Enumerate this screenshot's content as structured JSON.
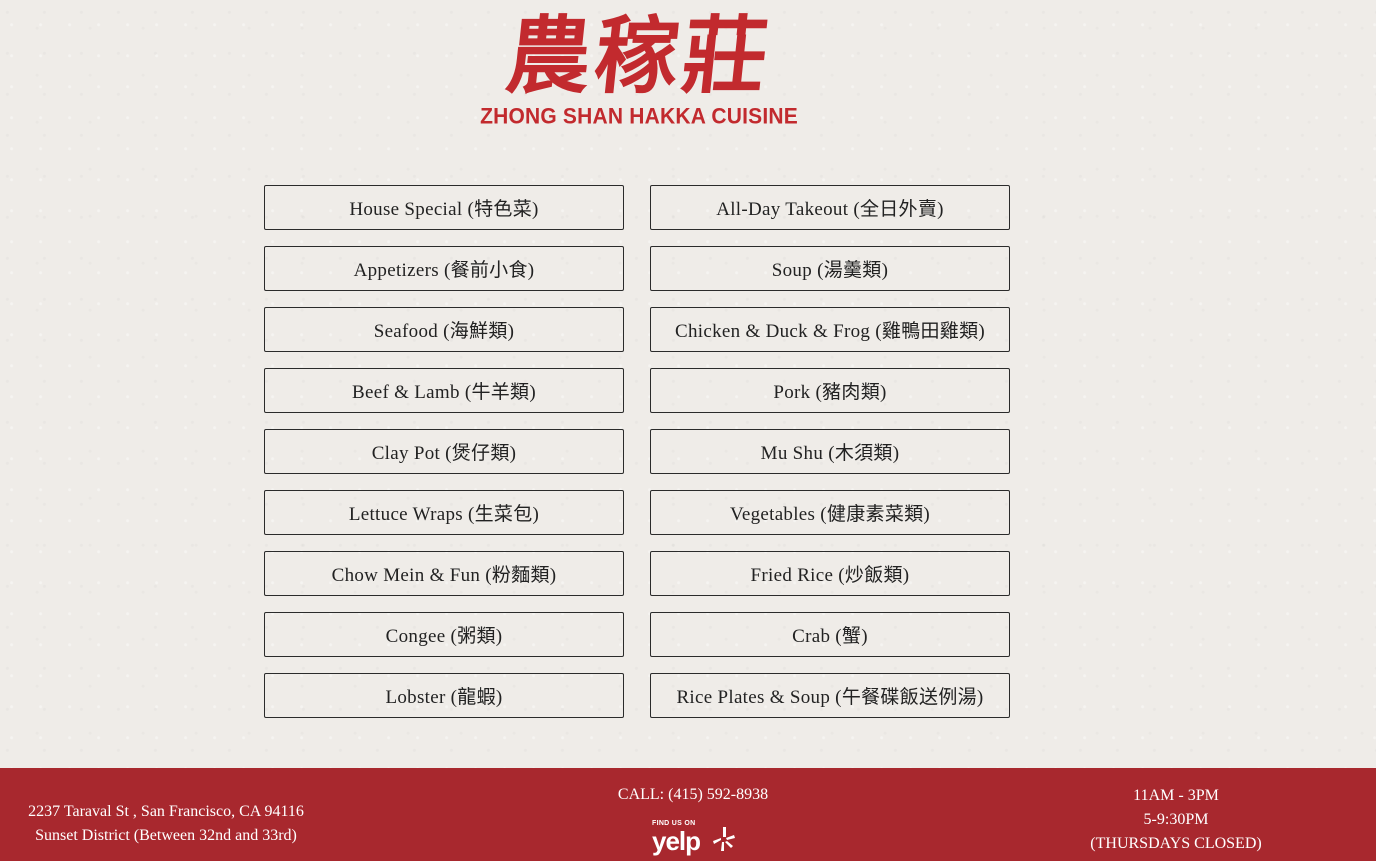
{
  "logo": {
    "chinese": "農稼莊",
    "english": "ZHONG SHAN HAKKA CUISINE"
  },
  "menu": {
    "items": [
      "House Special (特色菜)",
      "All-Day Takeout (全日外賣)",
      "Appetizers (餐前小食)",
      "Soup (湯羹類)",
      "Seafood (海鮮類)",
      "Chicken & Duck & Frog (雞鴨田雞類)",
      "Beef & Lamb (牛羊類)",
      "Pork (豬肉類)",
      "Clay Pot (煲仔類)",
      "Mu Shu (木須類)",
      "Lettuce Wraps (生菜包)",
      "Vegetables (健康素菜類)",
      "Chow Mein & Fun (粉麵類)",
      "Fried Rice (炒飯類)",
      "Congee (粥類)",
      "Crab (蟹)",
      "Lobster (龍蝦)",
      "Rice Plates & Soup (午餐碟飯送例湯)"
    ]
  },
  "footer": {
    "address_line1": "2237 Taraval St , San Francisco, CA 94116",
    "address_line2": "Sunset District (Between 32nd and 33rd)",
    "call": "CALL: (415) 592-8938",
    "yelp_small": "FIND US ON",
    "yelp_word": "yelp",
    "hours_line1": "11AM - 3PM",
    "hours_line2": "5-9:30PM",
    "hours_line3": "(THURSDAYS CLOSED)"
  },
  "colors": {
    "brand_red": "#c22a2e",
    "footer_red": "#a8282e",
    "background": "#efece8"
  }
}
